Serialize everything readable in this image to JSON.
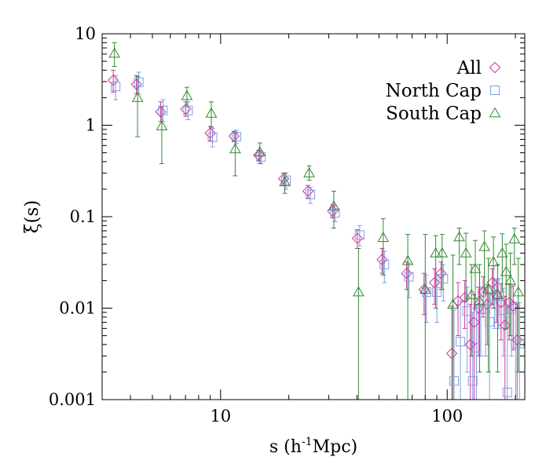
{
  "chart_data": {
    "type": "scatter",
    "xlabel_main": "s (h",
    "xlabel_sup": "-1",
    "xlabel_tail": "Mpc)",
    "ylabel": "ξ(s)",
    "x_scale": "log",
    "y_scale": "log",
    "xlim": [
      3.0,
      220
    ],
    "ylim": [
      0.001,
      10
    ],
    "x_ticks": [
      {
        "v": 10,
        "label": "10"
      },
      {
        "v": 100,
        "label": "100"
      }
    ],
    "y_ticks": [
      {
        "v": 0.001,
        "label": "0.001"
      },
      {
        "v": 0.01,
        "label": "0.01"
      },
      {
        "v": 0.1,
        "label": "0.1"
      },
      {
        "v": 1,
        "label": "1"
      },
      {
        "v": 10,
        "label": "10"
      }
    ],
    "legend_position": "top-right",
    "grid": false,
    "series": [
      {
        "name": "All",
        "marker": "diamond",
        "color": "#d2359f",
        "points": [
          {
            "x": 3.4,
            "y": 3.1,
            "lo": 2.3,
            "hi": 4.0
          },
          {
            "x": 4.3,
            "y": 2.8,
            "lo": 2.2,
            "hi": 3.5
          },
          {
            "x": 5.5,
            "y": 1.4,
            "lo": 1.1,
            "hi": 1.8
          },
          {
            "x": 7.1,
            "y": 1.5,
            "lo": 1.25,
            "hi": 1.8
          },
          {
            "x": 9.1,
            "y": 0.82,
            "lo": 0.68,
            "hi": 0.97
          },
          {
            "x": 11.6,
            "y": 0.76,
            "lo": 0.66,
            "hi": 0.86
          },
          {
            "x": 14.9,
            "y": 0.47,
            "lo": 0.41,
            "hi": 0.53
          },
          {
            "x": 19.2,
            "y": 0.26,
            "lo": 0.22,
            "hi": 0.3
          },
          {
            "x": 24.6,
            "y": 0.19,
            "lo": 0.16,
            "hi": 0.22
          },
          {
            "x": 31.6,
            "y": 0.115,
            "lo": 0.097,
            "hi": 0.135
          },
          {
            "x": 40.6,
            "y": 0.058,
            "lo": 0.045,
            "hi": 0.072
          },
          {
            "x": 52.2,
            "y": 0.034,
            "lo": 0.024,
            "hi": 0.045
          },
          {
            "x": 67.0,
            "y": 0.024,
            "lo": 0.016,
            "hi": 0.032
          },
          {
            "x": 80.0,
            "y": 0.016,
            "lo": 0.0085,
            "hi": 0.024
          },
          {
            "x": 89.0,
            "y": 0.019,
            "lo": 0.011,
            "hi": 0.027
          },
          {
            "x": 95.0,
            "y": 0.024,
            "lo": 0.016,
            "hi": 0.032
          },
          {
            "x": 106.0,
            "y": 0.0032,
            "lo": 0.001,
            "hi": 0.0105
          },
          {
            "x": 113.0,
            "y": 0.012,
            "lo": 0.005,
            "hi": 0.019
          },
          {
            "x": 121.0,
            "y": 0.013,
            "lo": 0.006,
            "hi": 0.02
          },
          {
            "x": 128.0,
            "y": 0.004,
            "lo": 0.001,
            "hi": 0.011
          },
          {
            "x": 133.0,
            "y": 0.007,
            "lo": 0.001,
            "hi": 0.014
          },
          {
            "x": 139.0,
            "y": 0.01,
            "lo": 0.003,
            "hi": 0.017
          },
          {
            "x": 146.0,
            "y": 0.015,
            "lo": 0.008,
            "hi": 0.022
          },
          {
            "x": 152.0,
            "y": 0.011,
            "lo": 0.004,
            "hi": 0.018
          },
          {
            "x": 160.0,
            "y": 0.019,
            "lo": 0.011,
            "hi": 0.027
          },
          {
            "x": 167.0,
            "y": 0.014,
            "lo": 0.007,
            "hi": 0.021
          },
          {
            "x": 175.0,
            "y": 0.0115,
            "lo": 0.0045,
            "hi": 0.0185
          },
          {
            "x": 182.0,
            "y": 0.0065,
            "lo": 0.001,
            "hi": 0.0135
          },
          {
            "x": 190.0,
            "y": 0.0115,
            "lo": 0.0045,
            "hi": 0.0185
          },
          {
            "x": 198.0,
            "y": 0.0105,
            "lo": 0.0035,
            "hi": 0.0175
          },
          {
            "x": 206.0,
            "y": 0.0045,
            "lo": 0.001,
            "hi": 0.0115
          }
        ]
      },
      {
        "name": "North Cap",
        "marker": "square",
        "color": "#7f9fe0",
        "points": [
          {
            "x": 3.4,
            "y": 2.65,
            "lo": 1.9,
            "hi": 3.5
          },
          {
            "x": 4.3,
            "y": 2.95,
            "lo": 2.2,
            "hi": 3.8
          },
          {
            "x": 5.5,
            "y": 1.45,
            "lo": 1.1,
            "hi": 1.9
          },
          {
            "x": 7.1,
            "y": 1.45,
            "lo": 1.15,
            "hi": 1.8
          },
          {
            "x": 9.1,
            "y": 0.74,
            "lo": 0.58,
            "hi": 0.92
          },
          {
            "x": 11.6,
            "y": 0.75,
            "lo": 0.63,
            "hi": 0.88
          },
          {
            "x": 14.9,
            "y": 0.45,
            "lo": 0.38,
            "hi": 0.52
          },
          {
            "x": 19.2,
            "y": 0.25,
            "lo": 0.2,
            "hi": 0.3
          },
          {
            "x": 24.6,
            "y": 0.175,
            "lo": 0.14,
            "hi": 0.21
          },
          {
            "x": 31.6,
            "y": 0.11,
            "lo": 0.088,
            "hi": 0.133
          },
          {
            "x": 40.6,
            "y": 0.063,
            "lo": 0.048,
            "hi": 0.08
          },
          {
            "x": 52.2,
            "y": 0.03,
            "lo": 0.019,
            "hi": 0.042
          },
          {
            "x": 67.0,
            "y": 0.022,
            "lo": 0.013,
            "hi": 0.031
          },
          {
            "x": 80.0,
            "y": 0.015,
            "lo": 0.007,
            "hi": 0.023
          },
          {
            "x": 89.0,
            "y": 0.015,
            "lo": 0.007,
            "hi": 0.023
          },
          {
            "x": 95.0,
            "y": 0.021,
            "lo": 0.012,
            "hi": 0.03
          },
          {
            "x": 106.0,
            "y": 0.0016,
            "lo": 0.001,
            "hi": 0.0095
          },
          {
            "x": 113.0,
            "y": 0.0043,
            "lo": 0.001,
            "hi": 0.012
          },
          {
            "x": 121.0,
            "y": 0.0093,
            "lo": 0.002,
            "hi": 0.017
          },
          {
            "x": 128.0,
            "y": 0.0016,
            "lo": 0.001,
            "hi": 0.009
          },
          {
            "x": 133.0,
            "y": 0.0037,
            "lo": 0.001,
            "hi": 0.011
          },
          {
            "x": 139.0,
            "y": 0.0097,
            "lo": 0.003,
            "hi": 0.017
          },
          {
            "x": 146.0,
            "y": 0.0098,
            "lo": 0.003,
            "hi": 0.017
          },
          {
            "x": 152.0,
            "y": 0.0071,
            "lo": 0.001,
            "hi": 0.0145
          },
          {
            "x": 160.0,
            "y": 0.0135,
            "lo": 0.006,
            "hi": 0.021
          },
          {
            "x": 167.0,
            "y": 0.0135,
            "lo": 0.006,
            "hi": 0.021
          },
          {
            "x": 175.0,
            "y": 0.0095,
            "lo": 0.003,
            "hi": 0.0165
          },
          {
            "x": 182.0,
            "y": 0.0012,
            "lo": 0.001,
            "hi": 0.008
          },
          {
            "x": 190.0,
            "y": 0.0098,
            "lo": 0.003,
            "hi": 0.017
          },
          {
            "x": 198.0,
            "y": 0.0041,
            "lo": 0.001,
            "hi": 0.0115
          },
          {
            "x": 206.0,
            "y": 0.0041,
            "lo": 0.001,
            "hi": 0.0115
          }
        ]
      },
      {
        "name": "South Cap",
        "marker": "triangle",
        "color": "#2f8a2f",
        "points": [
          {
            "x": 3.4,
            "y": 6.1,
            "lo": 4.4,
            "hi": 8.0
          },
          {
            "x": 4.3,
            "y": 2.0,
            "lo": 0.75,
            "hi": 3.4
          },
          {
            "x": 5.5,
            "y": 0.98,
            "lo": 0.38,
            "hi": 1.6
          },
          {
            "x": 7.1,
            "y": 2.1,
            "lo": 1.6,
            "hi": 2.6
          },
          {
            "x": 9.1,
            "y": 1.35,
            "lo": 0.95,
            "hi": 1.8
          },
          {
            "x": 11.6,
            "y": 0.55,
            "lo": 0.28,
            "hi": 0.82
          },
          {
            "x": 14.9,
            "y": 0.51,
            "lo": 0.38,
            "hi": 0.64
          },
          {
            "x": 19.2,
            "y": 0.24,
            "lo": 0.18,
            "hi": 0.3
          },
          {
            "x": 24.6,
            "y": 0.3,
            "lo": 0.25,
            "hi": 0.36
          },
          {
            "x": 31.6,
            "y": 0.13,
            "lo": 0.075,
            "hi": 0.19
          },
          {
            "x": 40.6,
            "y": 0.015,
            "lo": 0.001,
            "hi": 0.045
          },
          {
            "x": 52.2,
            "y": 0.059,
            "lo": 0.023,
            "hi": 0.095
          },
          {
            "x": 67.0,
            "y": 0.033,
            "lo": 0.001,
            "hi": 0.064
          },
          {
            "x": 80.0,
            "y": 0.016,
            "lo": 0.001,
            "hi": 0.064
          },
          {
            "x": 89.0,
            "y": 0.04,
            "lo": 0.01,
            "hi": 0.062
          },
          {
            "x": 95.0,
            "y": 0.04,
            "lo": 0.016,
            "hi": 0.064
          },
          {
            "x": 106.0,
            "y": 0.011,
            "lo": 0.001,
            "hi": 0.038
          },
          {
            "x": 113.0,
            "y": 0.06,
            "lo": 0.03,
            "hi": 0.075
          },
          {
            "x": 121.0,
            "y": 0.04,
            "lo": 0.012,
            "hi": 0.066
          },
          {
            "x": 128.0,
            "y": 0.014,
            "lo": 0.003,
            "hi": 0.03
          },
          {
            "x": 133.0,
            "y": 0.027,
            "lo": 0.01,
            "hi": 0.055
          },
          {
            "x": 139.0,
            "y": 0.012,
            "lo": 0.002,
            "hi": 0.03
          },
          {
            "x": 146.0,
            "y": 0.047,
            "lo": 0.015,
            "hi": 0.07
          },
          {
            "x": 152.0,
            "y": 0.016,
            "lo": 0.002,
            "hi": 0.035
          },
          {
            "x": 160.0,
            "y": 0.032,
            "lo": 0.01,
            "hi": 0.06
          },
          {
            "x": 167.0,
            "y": 0.014,
            "lo": 0.002,
            "hi": 0.03
          },
          {
            "x": 175.0,
            "y": 0.04,
            "lo": 0.015,
            "hi": 0.065
          },
          {
            "x": 182.0,
            "y": 0.025,
            "lo": 0.006,
            "hi": 0.05
          },
          {
            "x": 190.0,
            "y": 0.02,
            "lo": 0.005,
            "hi": 0.04
          },
          {
            "x": 198.0,
            "y": 0.057,
            "lo": 0.03,
            "hi": 0.075
          },
          {
            "x": 206.0,
            "y": 0.015,
            "lo": 0.002,
            "hi": 0.035
          }
        ]
      }
    ]
  }
}
